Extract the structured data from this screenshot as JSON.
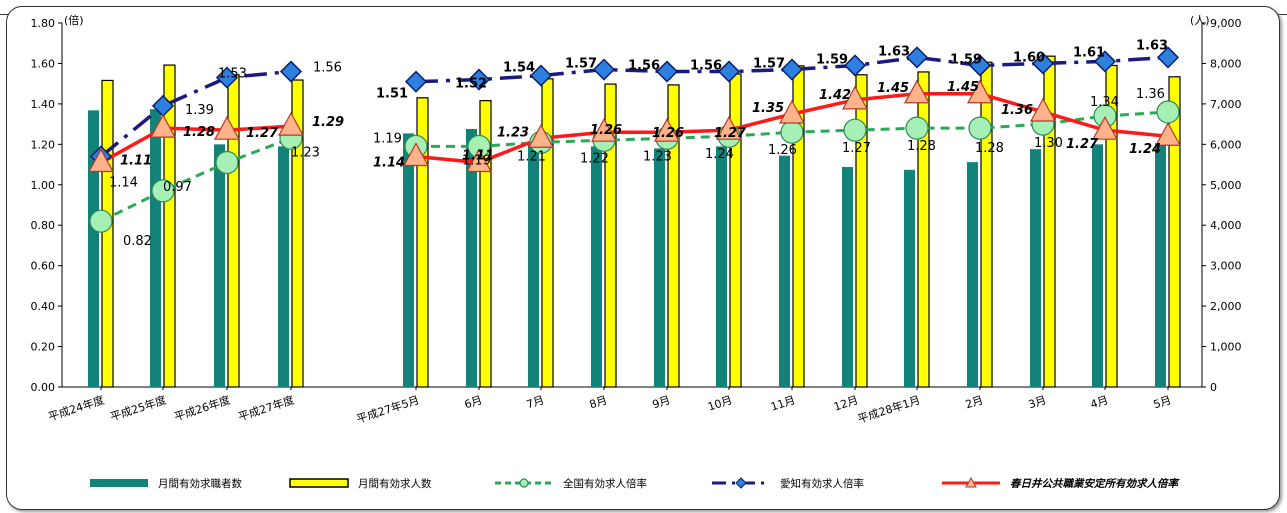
{
  "chart_data": {
    "type": "bar+line",
    "y_left": {
      "unit": "(倍)",
      "min": 0,
      "max": 1.8,
      "ticks": [
        "0.00",
        "0.20",
        "0.40",
        "0.60",
        "0.80",
        "1.00",
        "1.20",
        "1.40",
        "1.60",
        "1.80"
      ]
    },
    "y_right": {
      "unit": "(人)",
      "min": 0,
      "max": 9000,
      "ticks": [
        "0",
        "1,000",
        "2,000",
        "3,000",
        "4,000",
        "5,000",
        "6,000",
        "7,000",
        "8,000",
        "9,000"
      ]
    },
    "categories": [
      "平成24年度",
      "平成25年度",
      "平成26年度",
      "平成27年度",
      "平成27年5月",
      "6月",
      "7月",
      "8月",
      "9月",
      "10月",
      "11月",
      "12月",
      "平成28年1月",
      "2月",
      "3月",
      "4月",
      "5月"
    ],
    "series": [
      {
        "name": "月間有効求職者数",
        "type": "bar",
        "axis": "right",
        "color": "#13837a",
        "values": [
          6840,
          6870,
          6000,
          5950,
          6270,
          6380,
          6000,
          5950,
          5900,
          5950,
          5720,
          5440,
          5370,
          5560,
          5880,
          6000,
          6030
        ]
      },
      {
        "name": "月間有効求人数",
        "type": "bar",
        "axis": "right",
        "color": "#ffff00",
        "values": [
          7580,
          7960,
          7720,
          7590,
          7150,
          7080,
          7620,
          7490,
          7470,
          7740,
          7940,
          7720,
          7790,
          8030,
          8180,
          7950,
          7670
        ]
      },
      {
        "name": "全国有効求人倍率",
        "type": "line",
        "axis": "left",
        "color": "#2aaa55",
        "values": [
          0.82,
          0.97,
          1.11,
          1.23,
          null,
          null,
          null,
          null,
          null,
          null,
          null,
          null,
          null,
          null,
          null,
          null,
          null
        ],
        "labels": [
          "0.82",
          "0.97",
          null,
          "1.23",
          null,
          null,
          null,
          null,
          null,
          null,
          null,
          null,
          null,
          null,
          null,
          null,
          null
        ],
        "values2": [
          null,
          null,
          null,
          null,
          1.19,
          1.19,
          1.21,
          1.22,
          1.23,
          1.24,
          1.26,
          1.27,
          1.28,
          1.28,
          1.3,
          1.34,
          1.36
        ],
        "labels2": [
          null,
          null,
          null,
          null,
          "1.19",
          "1.19",
          "1.21",
          "1.22",
          "1.23",
          "1.24",
          "1.26",
          "1.27",
          "1.28",
          "1.28",
          "1.30",
          "1.34",
          "1.36"
        ]
      },
      {
        "name": "愛知有効求人倍率",
        "type": "line",
        "axis": "left",
        "color": "#1a1a80",
        "values": [
          1.14,
          1.39,
          1.53,
          1.56,
          null,
          null,
          null,
          null,
          null,
          null,
          null,
          null,
          null,
          null,
          null,
          null,
          null
        ],
        "labels": [
          "1.14",
          "1.39",
          "1.53",
          "1.56",
          null,
          null,
          null,
          null,
          null,
          null,
          null,
          null,
          null,
          null,
          null,
          null,
          null
        ],
        "values2": [
          null,
          null,
          null,
          null,
          1.51,
          1.52,
          1.54,
          1.57,
          1.56,
          1.56,
          1.57,
          1.59,
          1.63,
          1.59,
          1.6,
          1.61,
          1.63
        ],
        "labels2": [
          null,
          null,
          null,
          null,
          "1.51",
          "1.52",
          "1.54",
          "1.57",
          "1.56",
          "1.56",
          "1.57",
          "1.59",
          "1.63",
          "1.59",
          "1.60",
          "1.61",
          "1.63"
        ]
      },
      {
        "name": "春日井公共職業安定所有効求人倍率",
        "type": "line",
        "axis": "left",
        "color": "#ff1a1a",
        "values": [
          1.11,
          1.28,
          1.27,
          1.29,
          null,
          null,
          null,
          null,
          null,
          null,
          null,
          null,
          null,
          null,
          null,
          null,
          null
        ],
        "labels": [
          "1.11",
          "1.28",
          "1.27",
          "1.29",
          null,
          null,
          null,
          null,
          null,
          null,
          null,
          null,
          null,
          null,
          null,
          null,
          null
        ],
        "values2": [
          null,
          null,
          null,
          null,
          1.14,
          1.11,
          1.23,
          1.26,
          1.26,
          1.27,
          1.35,
          1.42,
          1.45,
          1.45,
          1.36,
          1.27,
          1.24
        ],
        "labels2": [
          null,
          null,
          null,
          null,
          "1.14",
          "1.11",
          "1.23",
          "1.26",
          "1.26",
          "1.27",
          "1.35",
          "1.42",
          "1.45",
          "1.45",
          "1.36",
          "1.27",
          "1.24"
        ]
      }
    ],
    "legend": {
      "placement": "bottom"
    },
    "grid": false
  }
}
